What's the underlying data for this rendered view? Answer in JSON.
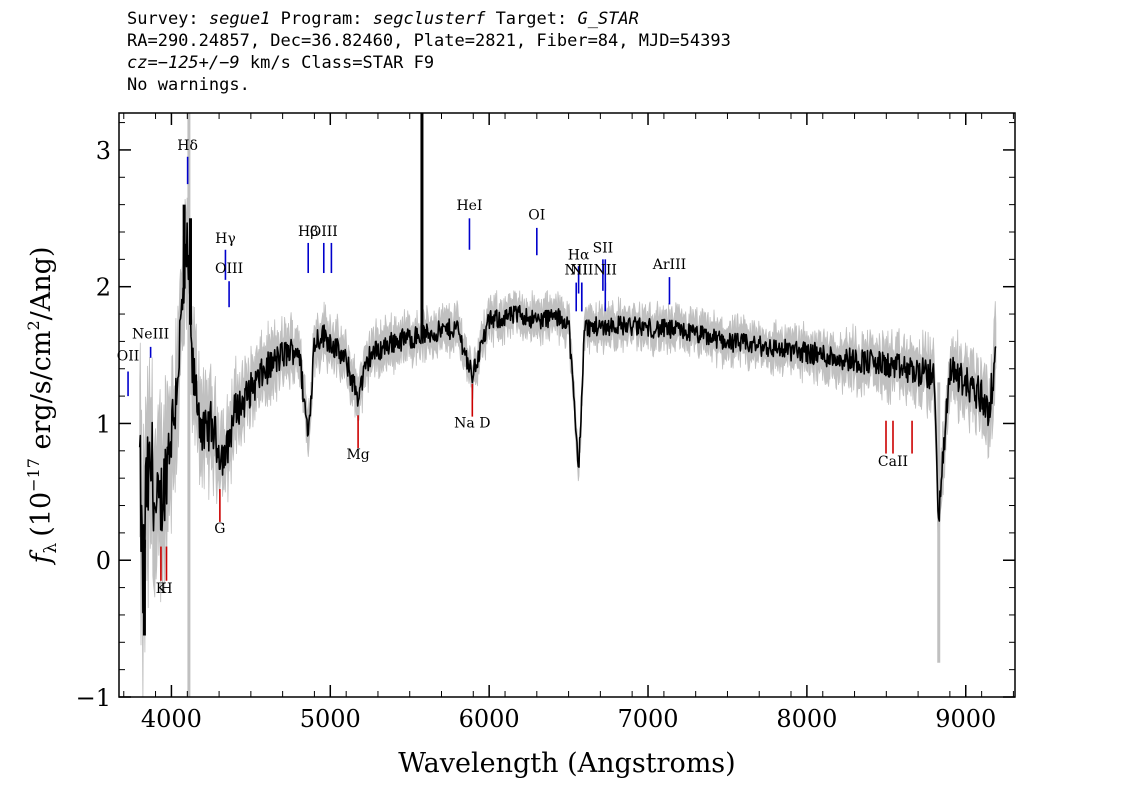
{
  "header": {
    "line1": {
      "survey_label": "Survey:",
      "survey_value": "segue1",
      "program_label": "Program:",
      "program_value": "segclusterf",
      "target_label": "Target:",
      "target_value": "G_STAR"
    },
    "line2": "RA=290.24857, Dec=36.82460, Plate=2821, Fiber=84, MJD=54393",
    "line3": {
      "cz_label": "cz=",
      "cz_value": "−125+/−9",
      "cz_unit": "km/s",
      "class_text": "Class=STAR F9"
    },
    "line4": "No warnings."
  },
  "colors": {
    "flux": "#000000",
    "error": "#c0c0c0",
    "emission_marker": "#0000cc",
    "absorption_marker": "#cc0000"
  },
  "chart_data": {
    "type": "line",
    "xlabel": "Wavelength (Angstroms)",
    "ylabel_main": "(10",
    "ylabel_sup": "−17",
    "ylabel_rest": " erg/s/cm",
    "ylabel_sup2": "2",
    "ylabel_end": "/Ang)",
    "ylabel_symbol": "f",
    "ylabel_subscript": "λ",
    "xlim": [
      3670,
      9310
    ],
    "ylim": [
      -1.0,
      3.27
    ],
    "xticks": [
      4000,
      5000,
      6000,
      7000,
      8000,
      9000
    ],
    "xtick_labels": [
      "4000",
      "5000",
      "6000",
      "7000",
      "8000",
      "9000"
    ],
    "yticks": [
      -1,
      0,
      1,
      2,
      3
    ],
    "ytick_labels": [
      "−1",
      "0",
      "1",
      "2",
      "3"
    ],
    "grid": false,
    "series": [
      {
        "x": [
          3800,
          3820,
          3840,
          3860,
          3880,
          3900,
          3930,
          3960,
          3990,
          4020,
          4060,
          4102,
          4130,
          4160,
          4200,
          4250,
          4300,
          4340,
          4400,
          4450,
          4500,
          4600,
          4700,
          4800,
          4861,
          4900,
          4950,
          5000,
          5100,
          5172,
          5250,
          5400,
          5600,
          5800,
          5893,
          6000,
          6200,
          6300,
          6400,
          6500,
          6563,
          6600,
          6800,
          7000,
          7200,
          7500,
          7800,
          8000,
          8200,
          8400,
          8600,
          8800,
          8830,
          8900,
          9000,
          9100,
          9150,
          9190
        ],
        "y": [
          0.7,
          -0.2,
          0.5,
          0.6,
          0.7,
          0.3,
          0.4,
          0.6,
          0.9,
          1.1,
          1.7,
          2.3,
          1.4,
          1.2,
          0.9,
          1.0,
          0.8,
          0.75,
          1.1,
          1.15,
          1.25,
          1.4,
          1.5,
          1.55,
          0.9,
          1.6,
          1.65,
          1.6,
          1.45,
          1.2,
          1.5,
          1.6,
          1.65,
          1.7,
          1.35,
          1.75,
          1.8,
          1.75,
          1.78,
          1.75,
          0.65,
          1.7,
          1.72,
          1.7,
          1.68,
          1.6,
          1.55,
          1.52,
          1.48,
          1.45,
          1.4,
          1.35,
          0.3,
          1.4,
          1.3,
          1.2,
          1.1,
          1.5
        ],
        "spikes": [
          {
            "x": 5577,
            "y": 3.27
          },
          {
            "x": 4080,
            "y": 2.6
          },
          {
            "x": 4120,
            "y": 2.5
          },
          {
            "x": 3830,
            "y": -0.55
          }
        ]
      }
    ],
    "error_band": {
      "x": [
        3800,
        4000,
        4200,
        4400,
        4700,
        5000,
        5500,
        6000,
        6500,
        7000,
        7500,
        8000,
        8500,
        9000,
        9190
      ],
      "half_width": [
        0.45,
        0.3,
        0.2,
        0.15,
        0.12,
        0.1,
        0.09,
        0.08,
        0.08,
        0.08,
        0.08,
        0.09,
        0.11,
        0.14,
        0.18
      ],
      "spikes": [
        {
          "x": 4110,
          "y_low": -1.0,
          "y_high": 3.27
        },
        {
          "x": 8830,
          "y_low": -0.75,
          "y_high": 1.3
        }
      ]
    },
    "emission_lines": [
      {
        "label": "OII",
        "x": 3727,
        "y_label": 1.46,
        "y_bottom": 1.2,
        "y_top": 1.38
      },
      {
        "label": "NeIII",
        "x": 3869,
        "y_label": 1.62,
        "y_bottom": 1.48,
        "y_top": 1.56
      },
      {
        "label": "Hδ",
        "x": 4102,
        "y_label": 3.0,
        "y_bottom": 2.75,
        "y_top": 2.95
      },
      {
        "label": "Hγ",
        "x": 4340,
        "y_label": 2.32,
        "y_bottom": 2.05,
        "y_top": 2.27
      },
      {
        "label": "OIII",
        "x": 4363,
        "y_label": 2.1,
        "y_bottom": 1.85,
        "y_top": 2.04
      },
      {
        "label": "Hβ",
        "x": 4861,
        "y_label": 2.37,
        "y_bottom": 2.1,
        "y_top": 2.32
      },
      {
        "label": "OIII",
        "x": 4959,
        "y_label": 2.37,
        "y_bottom": 2.1,
        "y_top": 2.32
      },
      {
        "label": "HeI",
        "x": 5876,
        "y_label": 2.56,
        "y_bottom": 2.27,
        "y_top": 2.5
      },
      {
        "label": "OI",
        "x": 6300,
        "y_label": 2.49,
        "y_bottom": 2.23,
        "y_top": 2.43
      },
      {
        "label": "NII",
        "x": 6548,
        "y_label": 2.09,
        "y_bottom": 1.82,
        "y_top": 2.03
      },
      {
        "label": "Hα",
        "x": 6563,
        "y_label": 2.2,
        "y_bottom": 1.95,
        "y_top": 2.15
      },
      {
        "label": "NII",
        "x": 6583,
        "y_label": 2.09,
        "y_bottom": 1.82,
        "y_top": 2.03
      },
      {
        "label": "SII",
        "x": 6716,
        "y_label": 2.25,
        "y_bottom": 1.97,
        "y_top": 2.2
      },
      {
        "label": "NII",
        "x": 6731,
        "y_label": 2.09,
        "y_bottom": 1.82,
        "y_top": 2.03
      },
      {
        "label": "ArIII",
        "x": 7135,
        "y_label": 2.13,
        "y_bottom": 1.87,
        "y_top": 2.07
      }
    ],
    "emission_extra_markers": [
      {
        "x": 5007,
        "y_bottom": 2.1,
        "y_top": 2.32
      },
      {
        "x": 6583,
        "y_bottom": 1.82,
        "y_top": 2.03
      },
      {
        "x": 6731,
        "y_bottom": 1.97,
        "y_top": 2.2
      }
    ],
    "absorption_lines": [
      {
        "label": "K",
        "x": 3934,
        "y_label": -0.24,
        "y_bottom": -0.15,
        "y_top": 0.1
      },
      {
        "label": "H",
        "x": 3969,
        "y_label": -0.24,
        "y_bottom": -0.15,
        "y_top": 0.1
      },
      {
        "label": "G",
        "x": 4305,
        "y_label": 0.2,
        "y_bottom": 0.28,
        "y_top": 0.52
      },
      {
        "label": "Mg",
        "x": 5175,
        "y_label": 0.74,
        "y_bottom": 0.82,
        "y_top": 1.06
      },
      {
        "label": "Na D",
        "x": 5894,
        "y_label": 0.97,
        "y_bottom": 1.05,
        "y_top": 1.29
      },
      {
        "label": "CaII",
        "x": 8542,
        "y_label": 0.69,
        "y_bottom": 0.78,
        "y_top": 1.02
      }
    ],
    "absorption_extra_markers": [
      {
        "x": 8498,
        "y_bottom": 0.78,
        "y_top": 1.02
      },
      {
        "x": 8662,
        "y_bottom": 0.78,
        "y_top": 1.02
      }
    ]
  }
}
